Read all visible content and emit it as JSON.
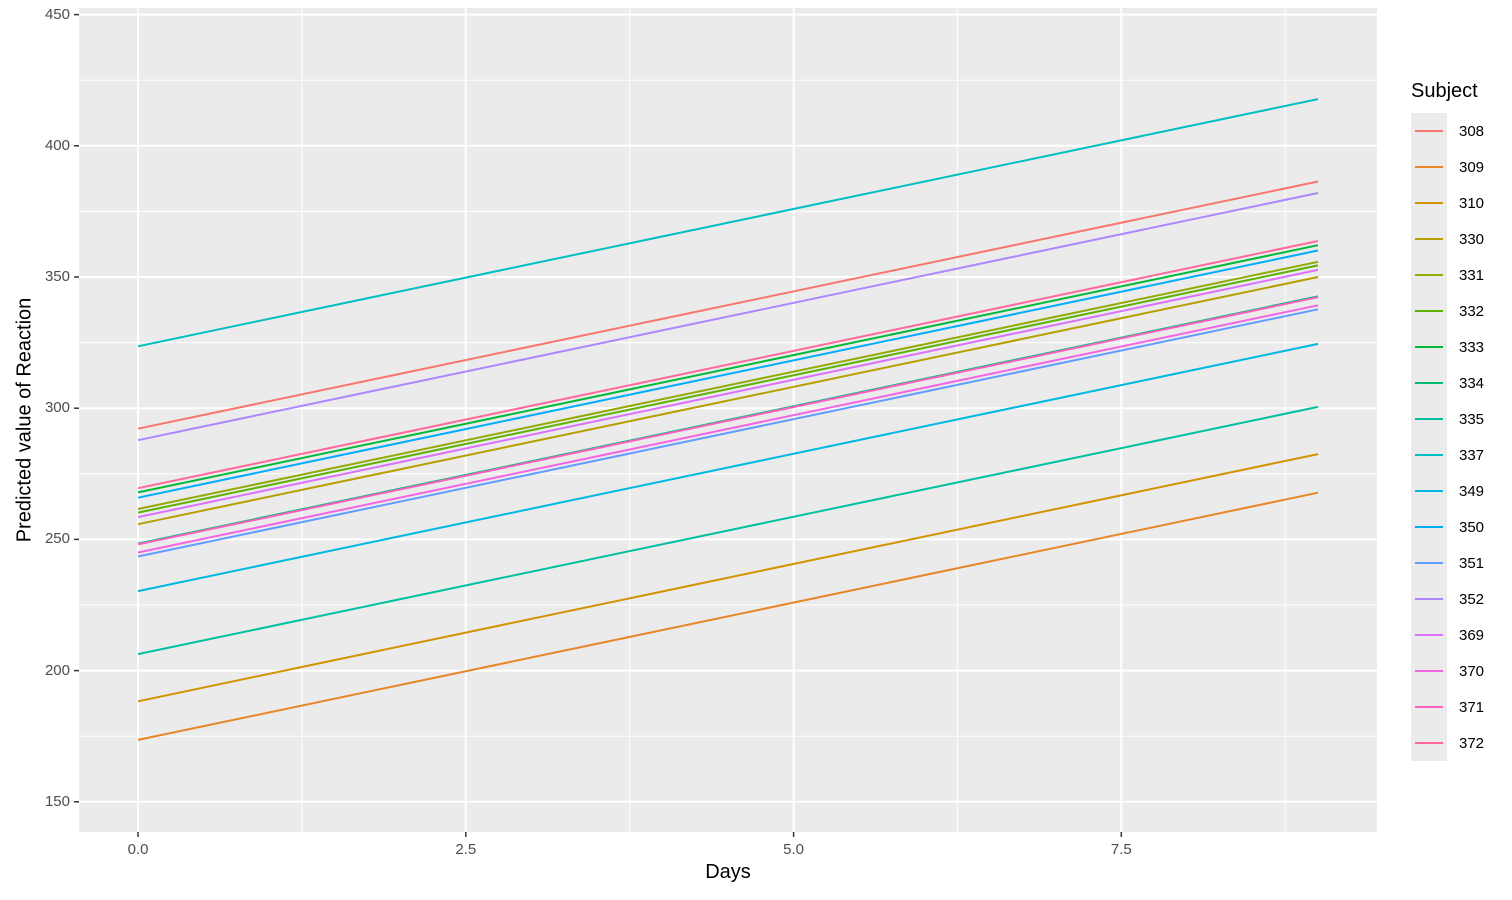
{
  "chart_data": {
    "type": "line",
    "title": "",
    "xlabel": "Days",
    "ylabel": "Predicted value of Reaction",
    "x": [
      0,
      9
    ],
    "xlim": [
      -0.45,
      9.45
    ],
    "ylim": [
      138.5,
      452.5
    ],
    "x_ticks": [
      0.0,
      2.5,
      5.0,
      7.5
    ],
    "x_tick_labels": [
      "0.0",
      "2.5",
      "5.0",
      "7.5"
    ],
    "y_ticks": [
      150,
      200,
      250,
      300,
      350,
      400,
      450
    ],
    "y_tick_labels": [
      "150",
      "200",
      "250",
      "300",
      "350",
      "400",
      "450"
    ],
    "grid": true,
    "legend_title": "Subject",
    "legend_position": "right",
    "panel_color": "#EBEBEB",
    "gridline_color": "#FFFFFF",
    "tick_color": "#333333",
    "series": [
      {
        "name": "308",
        "color": "#F8766D",
        "values": [
          292.2,
          386.4
        ]
      },
      {
        "name": "309",
        "color": "#E88526",
        "values": [
          173.6,
          267.8
        ]
      },
      {
        "name": "310",
        "color": "#D39200",
        "values": [
          188.3,
          282.5
        ]
      },
      {
        "name": "330",
        "color": "#B79F00",
        "values": [
          255.8,
          350.0
        ]
      },
      {
        "name": "331",
        "color": "#93AA00",
        "values": [
          261.6,
          355.8
        ]
      },
      {
        "name": "332",
        "color": "#5EB300",
        "values": [
          260.2,
          354.4
        ]
      },
      {
        "name": "333",
        "color": "#00BA38",
        "values": [
          267.9,
          362.1
        ]
      },
      {
        "name": "334",
        "color": "#00BF74",
        "values": [
          248.4,
          342.6
        ]
      },
      {
        "name": "335",
        "color": "#00C19F",
        "values": [
          206.3,
          300.5
        ]
      },
      {
        "name": "337",
        "color": "#00BFC4",
        "values": [
          323.6,
          417.8
        ]
      },
      {
        "name": "349",
        "color": "#00B9E3",
        "values": [
          230.3,
          324.5
        ]
      },
      {
        "name": "350",
        "color": "#00ADFA",
        "values": [
          265.9,
          360.1
        ]
      },
      {
        "name": "351",
        "color": "#619CFF",
        "values": [
          243.5,
          337.7
        ]
      },
      {
        "name": "352",
        "color": "#AE87FF",
        "values": [
          287.8,
          382.0
        ]
      },
      {
        "name": "369",
        "color": "#DB72FB",
        "values": [
          258.5,
          352.7
        ]
      },
      {
        "name": "370",
        "color": "#F564E3",
        "values": [
          245.0,
          339.2
        ]
      },
      {
        "name": "371",
        "color": "#FF61C3",
        "values": [
          248.1,
          342.3
        ]
      },
      {
        "name": "372",
        "color": "#FF699C",
        "values": [
          269.5,
          363.7
        ]
      }
    ]
  }
}
